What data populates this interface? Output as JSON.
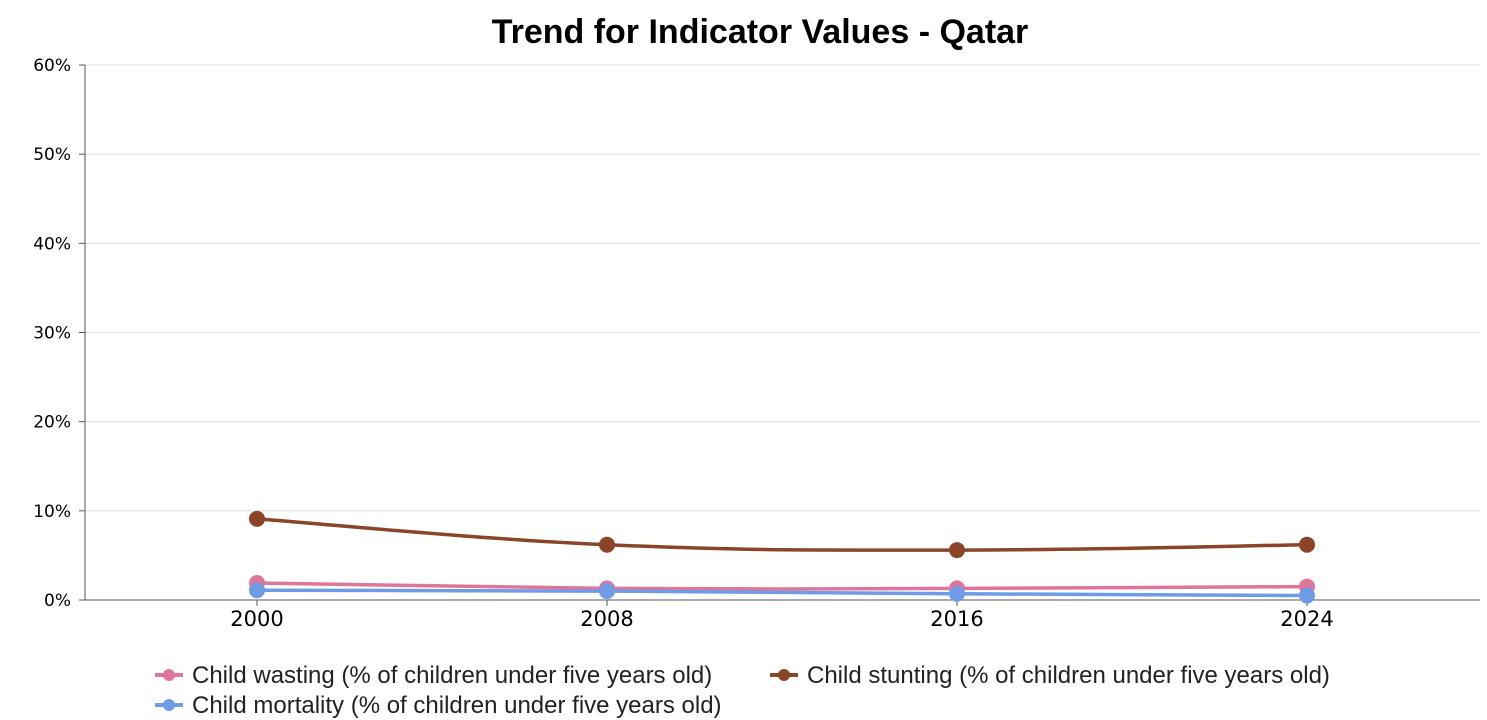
{
  "chart_data": {
    "type": "line",
    "title": "Trend for Indicator Values - Qatar",
    "xlabel": "",
    "ylabel": "",
    "categories": [
      "2000",
      "2008",
      "2016",
      "2024"
    ],
    "y_ticks": [
      "0%",
      "10%",
      "20%",
      "30%",
      "40%",
      "50%",
      "60%"
    ],
    "ylim": [
      0,
      60
    ],
    "grid": true,
    "legend_position": "bottom",
    "series": [
      {
        "name": "Child wasting (% of children under five years old)",
        "color": "#e0759a",
        "values": [
          1.9,
          1.3,
          1.3,
          1.5
        ]
      },
      {
        "name": "Child stunting (% of children under five years old)",
        "color": "#8b4428",
        "values": [
          9.1,
          6.2,
          5.6,
          6.2
        ]
      },
      {
        "name": "Child mortality (% of children under five years old)",
        "color": "#6e9be6",
        "values": [
          1.1,
          1.0,
          0.7,
          0.5
        ]
      }
    ]
  }
}
